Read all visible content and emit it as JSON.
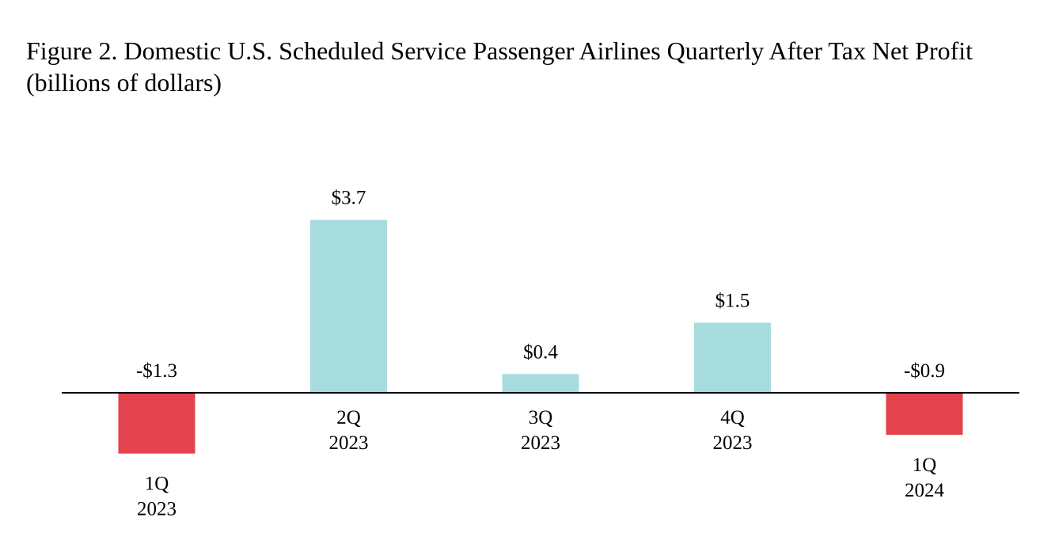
{
  "chart_data": {
    "type": "bar",
    "title_lines": [
      "Figure 2. Domestic U.S. Scheduled Service Passenger Airlines Quarterly After Tax Net Profit",
      "(billions of dollars)"
    ],
    "categories": [
      [
        "1Q",
        "2023"
      ],
      [
        "2Q",
        "2023"
      ],
      [
        "3Q",
        "2023"
      ],
      [
        "4Q",
        "2023"
      ],
      [
        "1Q",
        "2024"
      ]
    ],
    "values": [
      -1.3,
      3.7,
      0.4,
      1.5,
      -0.9
    ],
    "data_labels": [
      "-$1.3",
      "$3.7",
      "$0.4",
      "$1.5",
      "-$0.9"
    ],
    "xlabel": "",
    "ylabel": "",
    "grid": false,
    "legend": "none",
    "colors": {
      "positive": "#a7dcdf",
      "negative": "#e2434d",
      "axis": "#000000"
    }
  }
}
